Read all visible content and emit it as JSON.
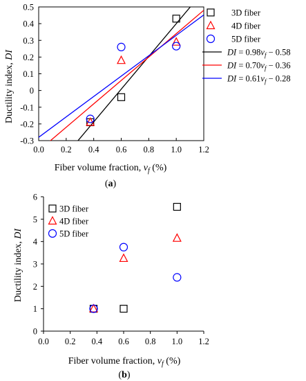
{
  "chart_data": [
    {
      "type": "scatter",
      "panel_label": "a",
      "xlabel": "Fiber volume fraction, ",
      "xlabel_var": "v",
      "xlabel_sub": "f",
      "xlabel_unit": " (%)",
      "ylabel": "Ductility index, ",
      "ylabel_var": "DI",
      "xlim": [
        0.0,
        1.2
      ],
      "ylim": [
        -0.3,
        0.5
      ],
      "xticks": [
        "0.0",
        "0.2",
        "0.4",
        "0.6",
        "0.8",
        "1.0",
        "1.2"
      ],
      "yticks": [
        "-0.3",
        "-0.2",
        "-0.1",
        "0",
        "0.1",
        "0.2",
        "0.3",
        "0.4",
        "0.5"
      ],
      "grid": false,
      "legend_position": "outside-right",
      "series": [
        {
          "name": "3D fiber",
          "marker": "square",
          "color": "#000000",
          "x": [
            0.375,
            0.6,
            1.0
          ],
          "y": [
            -0.19,
            -0.04,
            0.43
          ]
        },
        {
          "name": "4D fiber",
          "marker": "triangle",
          "color": "#ff0000",
          "x": [
            0.375,
            0.6,
            1.0
          ],
          "y": [
            -0.19,
            0.18,
            0.29
          ]
        },
        {
          "name": "5D fiber",
          "marker": "circle",
          "color": "#0000ff",
          "x": [
            0.375,
            0.6,
            1.0
          ],
          "y": [
            -0.17,
            0.26,
            0.265
          ]
        }
      ],
      "fits": [
        {
          "label": "DI = 0.98v_f − 0.58",
          "label_lhs": "DI",
          "label_mid": " = 0.98",
          "label_var": "v",
          "label_sub": "f",
          "label_rhs": " − 0.58",
          "slope": 0.98,
          "intercept": -0.58,
          "color": "#000000"
        },
        {
          "label": "DI = 0.70v_f − 0.36",
          "label_lhs": "DI",
          "label_mid": " = 0.70",
          "label_var": "v",
          "label_sub": "f",
          "label_rhs": " − 0.36",
          "slope": 0.7,
          "intercept": -0.36,
          "color": "#ff0000"
        },
        {
          "label": "DI = 0.61v_f − 0.28",
          "label_lhs": "DI",
          "label_mid": " = 0.61",
          "label_var": "v",
          "label_sub": "f",
          "label_rhs": " − 0.28",
          "slope": 0.61,
          "intercept": -0.28,
          "color": "#0000ff"
        }
      ]
    },
    {
      "type": "scatter",
      "panel_label": "b",
      "xlabel": "Fiber volume fraction, ",
      "xlabel_var": "v",
      "xlabel_sub": "f",
      "xlabel_unit": " (%)",
      "ylabel": "Ductility index, ",
      "ylabel_var": "DI",
      "xlim": [
        0.0,
        1.2
      ],
      "ylim": [
        0,
        6
      ],
      "xticks": [
        "0.0",
        "0.2",
        "0.4",
        "0.6",
        "0.8",
        "1.0",
        "1.2"
      ],
      "yticks": [
        "0",
        "1",
        "2",
        "3",
        "4",
        "5",
        "6"
      ],
      "grid": false,
      "legend_position": "top-left",
      "series": [
        {
          "name": "3D fiber",
          "marker": "square",
          "color": "#000000",
          "x": [
            0.375,
            0.6,
            1.0
          ],
          "y": [
            1.0,
            1.0,
            5.55
          ]
        },
        {
          "name": "4D fiber",
          "marker": "triangle",
          "color": "#ff0000",
          "x": [
            0.375,
            0.6,
            1.0
          ],
          "y": [
            1.0,
            3.25,
            4.15
          ]
        },
        {
          "name": "5D fiber",
          "marker": "circle",
          "color": "#0000ff",
          "x": [
            0.375,
            0.6,
            1.0
          ],
          "y": [
            1.0,
            3.75,
            2.4
          ]
        }
      ]
    }
  ]
}
